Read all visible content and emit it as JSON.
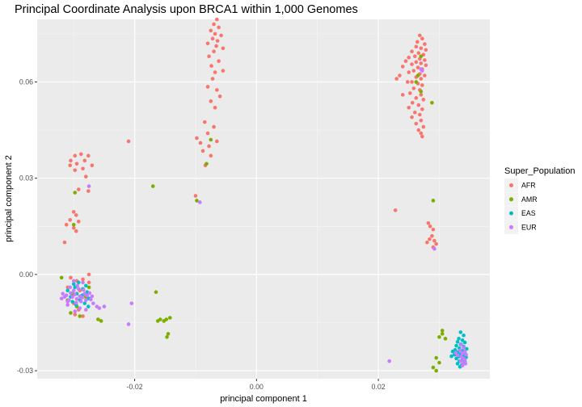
{
  "chart_data": {
    "type": "scatter",
    "title": "Principal Coordinate Analysis upon BRCA1 within 1,000 Genomes",
    "xlabel": "principal component 1",
    "ylabel": "principal component 2",
    "xlim": [
      -0.036,
      0.0383
    ],
    "ylim": [
      -0.0325,
      0.0795
    ],
    "x_ticks": [
      -0.02,
      0.0,
      0.02
    ],
    "x_tick_labels": [
      "-0.02",
      "0.00",
      "0.02"
    ],
    "y_ticks": [
      -0.03,
      0.0,
      0.03,
      0.06
    ],
    "y_tick_labels": [
      "-0.03",
      "0.00",
      "0.03",
      "0.06"
    ],
    "grid": true,
    "background": "#ebebeb",
    "legend": {
      "title": "Super_Population",
      "placement": "right"
    },
    "series": [
      {
        "name": "AFR",
        "color": "#f8766d",
        "points": [
          [
            -0.0065,
            0.0795
          ],
          [
            -0.007,
            0.078
          ],
          [
            -0.0062,
            0.077
          ],
          [
            -0.0075,
            0.076
          ],
          [
            -0.0068,
            0.075
          ],
          [
            -0.0058,
            0.0745
          ],
          [
            -0.0072,
            0.0735
          ],
          [
            -0.0064,
            0.0728
          ],
          [
            -0.008,
            0.072
          ],
          [
            -0.0066,
            0.0712
          ],
          [
            -0.0055,
            0.0705
          ],
          [
            -0.007,
            0.0695
          ],
          [
            -0.0078,
            0.068
          ],
          [
            -0.0062,
            0.0665
          ],
          [
            -0.0074,
            0.065
          ],
          [
            -0.0068,
            0.063
          ],
          [
            -0.0055,
            0.0635
          ],
          [
            -0.0072,
            0.061
          ],
          [
            -0.008,
            0.0585
          ],
          [
            -0.0065,
            0.0575
          ],
          [
            -0.006,
            0.0555
          ],
          [
            -0.0075,
            0.054
          ],
          [
            -0.0068,
            0.052
          ],
          [
            -0.0085,
            0.0475
          ],
          [
            -0.007,
            0.046
          ],
          [
            -0.008,
            0.044
          ],
          [
            -0.0098,
            0.0425
          ],
          [
            -0.0092,
            0.041
          ],
          [
            -0.0065,
            0.0415
          ],
          [
            -0.0078,
            0.04
          ],
          [
            -0.0088,
            0.0385
          ],
          [
            -0.0075,
            0.037
          ],
          [
            -0.0084,
            0.034
          ],
          [
            -0.01,
            0.0245
          ],
          [
            0.0268,
            0.0745
          ],
          [
            0.0272,
            0.0735
          ],
          [
            0.0264,
            0.0725
          ],
          [
            0.0276,
            0.0718
          ],
          [
            0.0262,
            0.071
          ],
          [
            0.027,
            0.0705
          ],
          [
            0.0278,
            0.07
          ],
          [
            0.0255,
            0.0695
          ],
          [
            0.0266,
            0.069
          ],
          [
            0.0274,
            0.0685
          ],
          [
            0.026,
            0.068
          ],
          [
            0.025,
            0.0676
          ],
          [
            0.0268,
            0.0672
          ],
          [
            0.0276,
            0.0668
          ],
          [
            0.0245,
            0.0665
          ],
          [
            0.0262,
            0.0662
          ],
          [
            0.027,
            0.0658
          ],
          [
            0.0255,
            0.0655
          ],
          [
            0.0278,
            0.0652
          ],
          [
            0.024,
            0.0648
          ],
          [
            0.0265,
            0.0645
          ],
          [
            0.0272,
            0.064
          ],
          [
            0.0258,
            0.0635
          ],
          [
            0.025,
            0.063
          ],
          [
            0.0268,
            0.0625
          ],
          [
            0.0276,
            0.062
          ],
          [
            0.0235,
            0.062
          ],
          [
            0.0262,
            0.0615
          ],
          [
            0.027,
            0.061
          ],
          [
            0.0255,
            0.06
          ],
          [
            0.0265,
            0.0595
          ],
          [
            0.0272,
            0.059
          ],
          [
            0.0258,
            0.058
          ],
          [
            0.0268,
            0.0575
          ],
          [
            0.0252,
            0.0565
          ],
          [
            0.027,
            0.056
          ],
          [
            0.0262,
            0.055
          ],
          [
            0.0274,
            0.0545
          ],
          [
            0.0256,
            0.0535
          ],
          [
            0.0266,
            0.0528
          ],
          [
            0.025,
            0.052
          ],
          [
            0.0272,
            0.0515
          ],
          [
            0.026,
            0.0505
          ],
          [
            0.0268,
            0.0498
          ],
          [
            0.0255,
            0.049
          ],
          [
            0.027,
            0.048
          ],
          [
            0.0262,
            0.047
          ],
          [
            0.0274,
            0.046
          ],
          [
            0.0266,
            0.045
          ],
          [
            0.027,
            0.044
          ],
          [
            0.0272,
            0.043
          ],
          [
            0.024,
            0.056
          ],
          [
            0.023,
            0.061
          ],
          [
            0.0248,
            0.06
          ],
          [
            0.0228,
            0.02
          ],
          [
            0.0282,
            0.016
          ],
          [
            0.0285,
            0.015
          ],
          [
            0.029,
            0.014
          ],
          [
            0.0288,
            0.012
          ],
          [
            0.0284,
            0.011
          ],
          [
            0.0292,
            0.0105
          ],
          [
            0.028,
            0.01
          ],
          [
            0.0295,
            0.0095
          ],
          [
            0.029,
            0.0085
          ],
          [
            -0.021,
            0.0415
          ],
          [
            -0.0298,
            0.037
          ],
          [
            -0.0288,
            0.0375
          ],
          [
            -0.0276,
            0.037
          ],
          [
            -0.0305,
            0.0355
          ],
          [
            -0.0282,
            0.0355
          ],
          [
            -0.0295,
            0.0345
          ],
          [
            -0.0306,
            0.034
          ],
          [
            -0.027,
            0.034
          ],
          [
            -0.0285,
            0.033
          ],
          [
            -0.0298,
            0.0325
          ],
          [
            -0.028,
            0.0305
          ],
          [
            -0.0292,
            0.0265
          ],
          [
            -0.0276,
            0.026
          ],
          [
            -0.03,
            0.0195
          ],
          [
            -0.0296,
            0.0185
          ],
          [
            -0.0306,
            0.017
          ],
          [
            -0.0292,
            0.0165
          ],
          [
            -0.0312,
            0.0155
          ],
          [
            -0.03,
            0.0145
          ],
          [
            -0.0296,
            0.0135
          ],
          [
            -0.0315,
            0.01
          ],
          [
            -0.0305,
            -0.001
          ],
          [
            -0.0295,
            -0.002
          ],
          [
            -0.0285,
            -0.0015
          ],
          [
            -0.0275,
            -0.0025
          ],
          [
            -0.031,
            -0.004
          ],
          [
            -0.029,
            -0.005
          ],
          [
            -0.028,
            -0.007
          ],
          [
            -0.03,
            -0.009
          ],
          [
            -0.0292,
            -0.011
          ],
          [
            -0.0285,
            -0.013
          ],
          [
            -0.0275,
            0.0
          ],
          [
            -0.0298,
            -0.0125
          ]
        ]
      },
      {
        "name": "AMR",
        "color": "#7cae00",
        "points": [
          [
            -0.0075,
            0.042
          ],
          [
            -0.0082,
            0.0345
          ],
          [
            -0.0098,
            0.023
          ],
          [
            0.027,
            0.068
          ],
          [
            0.0265,
            0.062
          ],
          [
            0.0262,
            0.06
          ],
          [
            0.027,
            0.057
          ],
          [
            0.0288,
            0.0535
          ],
          [
            0.029,
            0.023
          ],
          [
            -0.017,
            0.0275
          ],
          [
            -0.0165,
            -0.0055
          ],
          [
            -0.0162,
            -0.0145
          ],
          [
            -0.0158,
            -0.014
          ],
          [
            -0.0152,
            -0.0145
          ],
          [
            -0.0148,
            -0.014
          ],
          [
            -0.0142,
            -0.0135
          ],
          [
            -0.0145,
            -0.0185
          ],
          [
            -0.0147,
            -0.0195
          ],
          [
            -0.0255,
            -0.0145
          ],
          [
            -0.026,
            -0.014
          ],
          [
            -0.0298,
            0.0255
          ],
          [
            -0.03,
            0.0155
          ],
          [
            -0.032,
            -0.001
          ],
          [
            -0.031,
            -0.008
          ],
          [
            -0.028,
            -0.007
          ],
          [
            -0.0295,
            -0.01
          ],
          [
            -0.0305,
            -0.012
          ],
          [
            -0.029,
            -0.013
          ],
          [
            -0.0275,
            -0.004
          ],
          [
            -0.0302,
            -0.006
          ],
          [
            0.03,
            -0.0195
          ],
          [
            0.0305,
            -0.0185
          ],
          [
            0.031,
            -0.02
          ],
          [
            0.0305,
            -0.0175
          ],
          [
            0.0295,
            -0.026
          ],
          [
            0.03,
            -0.0275
          ],
          [
            0.029,
            -0.029
          ],
          [
            0.0295,
            -0.03
          ]
        ]
      },
      {
        "name": "EAS",
        "color": "#00bfc4",
        "points": [
          [
            0.0335,
            -0.018
          ],
          [
            0.034,
            -0.019
          ],
          [
            0.0332,
            -0.02
          ],
          [
            0.0338,
            -0.0205
          ],
          [
            0.033,
            -0.021
          ],
          [
            0.0342,
            -0.0212
          ],
          [
            0.0335,
            -0.0218
          ],
          [
            0.0328,
            -0.0222
          ],
          [
            0.034,
            -0.0225
          ],
          [
            0.0333,
            -0.023
          ],
          [
            0.0345,
            -0.0232
          ],
          [
            0.0326,
            -0.0235
          ],
          [
            0.0338,
            -0.0238
          ],
          [
            0.033,
            -0.0242
          ],
          [
            0.0342,
            -0.0245
          ],
          [
            0.0335,
            -0.0248
          ],
          [
            0.0325,
            -0.025
          ],
          [
            0.034,
            -0.0252
          ],
          [
            0.0332,
            -0.0256
          ],
          [
            0.0344,
            -0.0258
          ],
          [
            0.0328,
            -0.0262
          ],
          [
            0.0338,
            -0.0266
          ],
          [
            0.0333,
            -0.027
          ],
          [
            0.0342,
            -0.0272
          ],
          [
            0.033,
            -0.0278
          ],
          [
            0.0337,
            -0.0282
          ],
          [
            0.0334,
            -0.0288
          ],
          [
            0.0322,
            -0.024
          ],
          [
            0.032,
            -0.0255
          ],
          [
            -0.03,
            -0.003
          ],
          [
            -0.0285,
            -0.0045
          ],
          [
            -0.0295,
            -0.006
          ],
          [
            -0.0278,
            -0.0055
          ],
          [
            -0.0305,
            -0.007
          ],
          [
            -0.029,
            -0.008
          ],
          [
            -0.0282,
            -0.009
          ],
          [
            -0.0298,
            -0.004
          ],
          [
            -0.0275,
            -0.0075
          ],
          [
            -0.0292,
            -0.0025
          ],
          [
            -0.031,
            -0.005
          ],
          [
            -0.0286,
            -0.0065
          ],
          [
            -0.0296,
            -0.0095
          ],
          [
            -0.028,
            -0.0035
          ],
          [
            -0.0302,
            -0.0085
          ],
          [
            -0.0276,
            -0.01
          ]
        ]
      },
      {
        "name": "EUR",
        "color": "#c77cff",
        "points": [
          [
            0.027,
            0.064
          ],
          [
            0.0272,
            0.0635
          ],
          [
            0.0292,
            0.008
          ],
          [
            0.0218,
            -0.027
          ],
          [
            0.0336,
            -0.0218
          ],
          [
            0.034,
            -0.0228
          ],
          [
            0.0334,
            -0.0236
          ],
          [
            0.0342,
            -0.024
          ],
          [
            0.0338,
            -0.0246
          ],
          [
            0.0344,
            -0.025
          ],
          [
            0.0336,
            -0.0256
          ],
          [
            0.034,
            -0.0262
          ],
          [
            0.0342,
            -0.0266
          ],
          [
            0.0335,
            -0.027
          ],
          [
            0.034,
            -0.0274
          ],
          [
            0.0343,
            -0.0278
          ],
          [
            0.0338,
            -0.0284
          ],
          [
            0.033,
            -0.0252
          ],
          [
            0.0327,
            -0.0244
          ],
          [
            -0.0093,
            0.0225
          ],
          [
            -0.0205,
            -0.009
          ],
          [
            -0.021,
            -0.0155
          ],
          [
            -0.025,
            -0.01
          ],
          [
            -0.0275,
            0.0275
          ],
          [
            -0.0315,
            -0.007
          ],
          [
            -0.032,
            -0.0075
          ],
          [
            -0.0312,
            -0.0065
          ],
          [
            -0.0308,
            -0.008
          ],
          [
            -0.0302,
            -0.007
          ],
          [
            -0.0298,
            -0.0062
          ],
          [
            -0.0295,
            -0.0076
          ],
          [
            -0.029,
            -0.0068
          ],
          [
            -0.0286,
            -0.0072
          ],
          [
            -0.0282,
            -0.006
          ],
          [
            -0.0278,
            -0.0066
          ],
          [
            -0.0274,
            -0.0058
          ],
          [
            -0.027,
            -0.0068
          ],
          [
            -0.03,
            -0.005
          ],
          [
            -0.0292,
            -0.0045
          ],
          [
            -0.0284,
            -0.0048
          ],
          [
            -0.0305,
            -0.0058
          ],
          [
            -0.031,
            -0.0085
          ],
          [
            -0.0296,
            -0.0088
          ],
          [
            -0.0288,
            -0.0084
          ],
          [
            -0.028,
            -0.008
          ],
          [
            -0.0272,
            -0.0078
          ],
          [
            -0.0318,
            -0.006
          ],
          [
            -0.0306,
            -0.004
          ],
          [
            -0.0294,
            -0.0035
          ],
          [
            -0.0258,
            -0.0105
          ],
          [
            -0.0262,
            -0.01
          ],
          [
            -0.0268,
            -0.009
          ],
          [
            -0.03,
            -0.002
          ],
          [
            -0.0285,
            -0.0025
          ],
          [
            -0.031,
            -0.0095
          ],
          [
            -0.029,
            -0.0105
          ],
          [
            -0.028,
            -0.011
          ],
          [
            -0.0298,
            -0.0115
          ]
        ]
      }
    ]
  }
}
